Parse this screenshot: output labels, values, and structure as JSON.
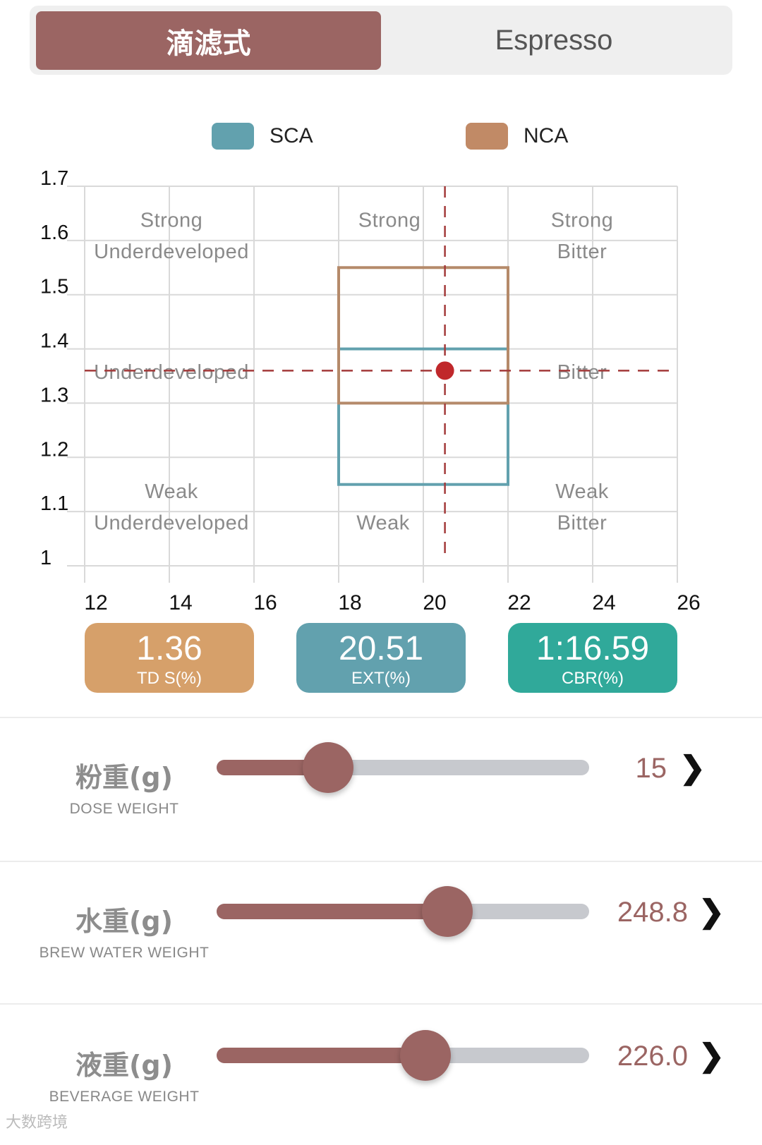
{
  "tabs": [
    {
      "label": "滴滤式",
      "active": true
    },
    {
      "label": "Espresso",
      "active": false
    }
  ],
  "legend": [
    {
      "label": "SCA",
      "color": "#62a1ae"
    },
    {
      "label": "NCA",
      "color": "#c18a66"
    }
  ],
  "chart_data": {
    "type": "scatter",
    "title": "",
    "xlabel": "",
    "ylabel": "",
    "x_ticks": [
      "12",
      "14",
      "16",
      "18",
      "20",
      "22",
      "24",
      "26"
    ],
    "y_ticks": [
      "1",
      "1.1",
      "1.2",
      "1.3",
      "1.4",
      "1.5",
      "1.6",
      "1.7"
    ],
    "xlim": [
      12,
      26
    ],
    "ylim": [
      1.0,
      1.7
    ],
    "grid": true,
    "regions": [
      {
        "name": "SCA",
        "x": [
          18,
          22
        ],
        "y": [
          1.15,
          1.4
        ],
        "color": "#62a1ae"
      },
      {
        "name": "NCA",
        "x": [
          18,
          22
        ],
        "y": [
          1.3,
          1.55
        ],
        "color": "#b58a6a"
      }
    ],
    "zone_labels": [
      {
        "lines": [
          "Strong",
          "Underdeveloped"
        ],
        "x": 14.05,
        "y": [
          1.625,
          1.567
        ]
      },
      {
        "lines": [
          "Strong"
        ],
        "x": 19.2,
        "y": [
          1.625
        ]
      },
      {
        "lines": [
          "Strong",
          "Bitter"
        ],
        "x": 23.75,
        "y": [
          1.625,
          1.567
        ]
      },
      {
        "lines": [
          "Underdeveloped"
        ],
        "x": 14.05,
        "y": [
          1.345
        ]
      },
      {
        "lines": [
          "Bitter"
        ],
        "x": 23.75,
        "y": [
          1.345
        ]
      },
      {
        "lines": [
          "Weak",
          "Underdeveloped"
        ],
        "x": 14.05,
        "y": [
          1.125,
          1.067
        ]
      },
      {
        "lines": [
          "Weak"
        ],
        "x": 19.05,
        "y": [
          1.067
        ]
      },
      {
        "lines": [
          "Weak",
          "Bitter"
        ],
        "x": 23.75,
        "y": [
          1.125,
          1.067
        ]
      }
    ],
    "point": {
      "x": 20.51,
      "y": 1.36,
      "color": "#c0282b"
    }
  },
  "badges": [
    {
      "value": "1.36",
      "label": "TD S(%)",
      "color": "#d6a06a"
    },
    {
      "value": "20.51",
      "label": "EXT(%)",
      "color": "#62a1ae"
    },
    {
      "value": "1:16.59",
      "label": "CBR(%)",
      "color": "#30a99a"
    }
  ],
  "sliders": [
    {
      "cn": "粉重(g)",
      "en": "DOSE WEIGHT",
      "value": "15",
      "fraction": 0.3
    },
    {
      "cn": "水重(g)",
      "en": "BREW WATER WEIGHT",
      "value": "248.8",
      "fraction": 0.62
    },
    {
      "cn": "液重(g)",
      "en": "BEVERAGE WEIGHT",
      "value": "226.0",
      "fraction": 0.56
    }
  ],
  "watermark": "大数跨境"
}
